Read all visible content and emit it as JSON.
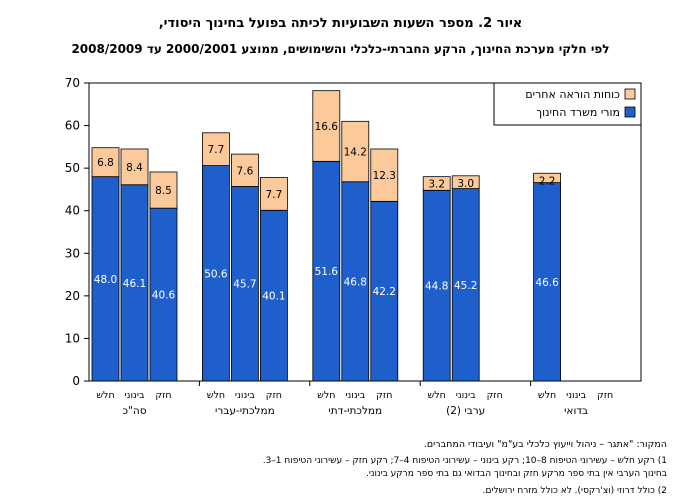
{
  "title_line1": "איור 2. מספר השעות השבועיות לכיתה בפועל בחינוך היסודי,",
  "title_line2": "לפי חלקי מערכת החינוך, הרקע החברתי-כלכלי והשימושים, ממוצע 2000/2001 עד 2008/2009",
  "notes": {
    "source": "המקור: \"אתגר – ניהול וייעוץ כלכלי בע\"מ\" ועיבודי המחברים.",
    "note1_line1": "1) רקע חלש – עשירוני הטיפוח 8–10; רקע בינוני – עשירוני הטיפוח 4–7; רקע חזק – עשירוני הטיפוח 1–3.",
    "note1_line2": "בחינוך הערבי אין בתי ספר מרקע חזק ובחינוך הבדואי גם בתי ספר מרקע בינוני.",
    "note2": "2) כולל דרוזי (וצ'רקסי). לא כולל מזרח ירושלים."
  },
  "chart_data": {
    "type": "bar",
    "stacked": true,
    "title": "",
    "xlabel": "",
    "ylabel": "",
    "ylim": [
      0,
      70
    ],
    "yticks": [
      0,
      10,
      20,
      30,
      40,
      50,
      60,
      70
    ],
    "grid": false,
    "legend_position": "top-right",
    "groups": [
      {
        "name": "סה\"כ",
        "categories": [
          "חלש",
          "בינוני",
          "חזק"
        ]
      },
      {
        "name": "ממלכתי-עברי",
        "categories": [
          "חלש",
          "בינוני",
          "חזק"
        ]
      },
      {
        "name": "ממלכתי-דתי",
        "categories": [
          "חלש",
          "בינוני",
          "חזק"
        ]
      },
      {
        "name": "ערבי (2)",
        "categories": [
          "חלש",
          "בינוני",
          "חזק"
        ]
      },
      {
        "name": "בדואי",
        "categories": [
          "חלש",
          "בינוני",
          "חזק"
        ]
      }
    ],
    "series": [
      {
        "name": "מורי משרד החינוך",
        "color": "#1f5fcc",
        "values": [
          [
            48.0,
            46.1,
            40.6
          ],
          [
            50.6,
            45.7,
            40.1
          ],
          [
            51.6,
            46.8,
            42.2
          ],
          [
            44.8,
            45.2,
            null
          ],
          [
            46.6,
            null,
            null
          ]
        ]
      },
      {
        "name": "כוחות הוראה אחרים",
        "color": "#fcc99a",
        "values": [
          [
            6.8,
            8.4,
            8.5
          ],
          [
            7.7,
            7.6,
            7.7
          ],
          [
            16.6,
            14.2,
            12.3
          ],
          [
            3.2,
            3.0,
            null
          ],
          [
            2.2,
            null,
            null
          ]
        ]
      }
    ]
  }
}
